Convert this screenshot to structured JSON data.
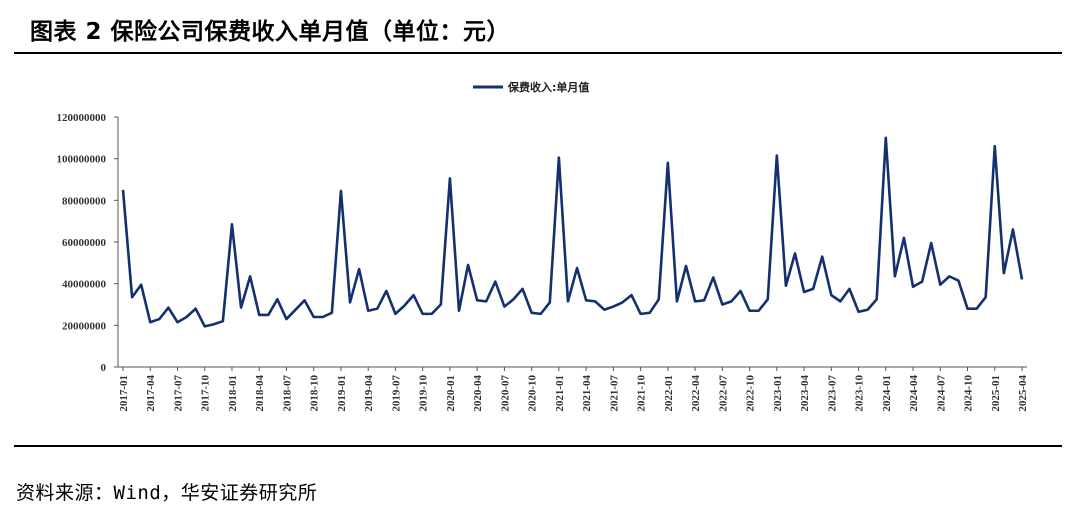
{
  "header": {
    "title": "图表 2 保险公司保费收入单月值（单位：元）"
  },
  "footer": {
    "source": "资料来源：Wind，华安证券研究所"
  },
  "colors": {
    "series": "#14306e",
    "axis": "#555555"
  },
  "chart_data": {
    "type": "line",
    "title": "",
    "xlabel": "",
    "ylabel": "",
    "ylim": [
      0,
      120000000
    ],
    "yticks": [
      0,
      20000000,
      40000000,
      60000000,
      80000000,
      100000000,
      120000000
    ],
    "ytick_labels": [
      "0",
      "20000000",
      "40000000",
      "60000000",
      "80000000",
      "100000000",
      "120000000"
    ],
    "xtick_labels": [
      "2017-01",
      "2017-04",
      "2017-07",
      "2017-10",
      "2018-01",
      "2018-04",
      "2018-07",
      "2018-10",
      "2019-01",
      "2019-04",
      "2019-07",
      "2019-10",
      "2020-01",
      "2020-04",
      "2020-07",
      "2020-10",
      "2021-01",
      "2021-04",
      "2021-07",
      "2021-10",
      "2022-01",
      "2022-04",
      "2022-07",
      "2022-10",
      "2023-01",
      "2023-04",
      "2023-07",
      "2023-10",
      "2024-01",
      "2024-04",
      "2024-07",
      "2024-10",
      "2025-01",
      "2025-04"
    ],
    "legend": "top-center",
    "grid": false,
    "series": [
      {
        "name": "保费收入:单月值",
        "values": [
          85000000,
          33500000,
          39500000,
          21500000,
          23000000,
          28500000,
          21500000,
          24000000,
          28000000,
          19500000,
          20500000,
          22000000,
          68500000,
          28500000,
          43500000,
          25000000,
          25000000,
          32500000,
          23000000,
          27500000,
          32000000,
          24000000,
          24000000,
          26000000,
          84500000,
          31000000,
          47000000,
          27000000,
          28000000,
          36500000,
          25500000,
          29500000,
          34500000,
          25500000,
          25500000,
          30000000,
          90500000,
          27000000,
          49000000,
          32000000,
          31500000,
          41000000,
          29000000,
          32500000,
          37500000,
          26000000,
          25500000,
          31000000,
          100500000,
          31500000,
          47500000,
          32000000,
          31500000,
          27500000,
          29000000,
          31000000,
          34500000,
          25500000,
          26000000,
          32500000,
          98000000,
          31500000,
          48500000,
          31500000,
          32000000,
          43000000,
          30000000,
          31500000,
          36500000,
          27000000,
          27000000,
          32500000,
          101500000,
          39000000,
          54500000,
          36000000,
          37500000,
          53000000,
          34500000,
          31500000,
          37500000,
          26500000,
          27500000,
          32500000,
          110000000,
          43500000,
          62000000,
          38500000,
          41000000,
          59500000,
          39500000,
          43500000,
          41500000,
          28000000,
          28000000,
          33500000,
          106000000,
          45000000,
          66000000,
          42000000
        ]
      }
    ]
  }
}
